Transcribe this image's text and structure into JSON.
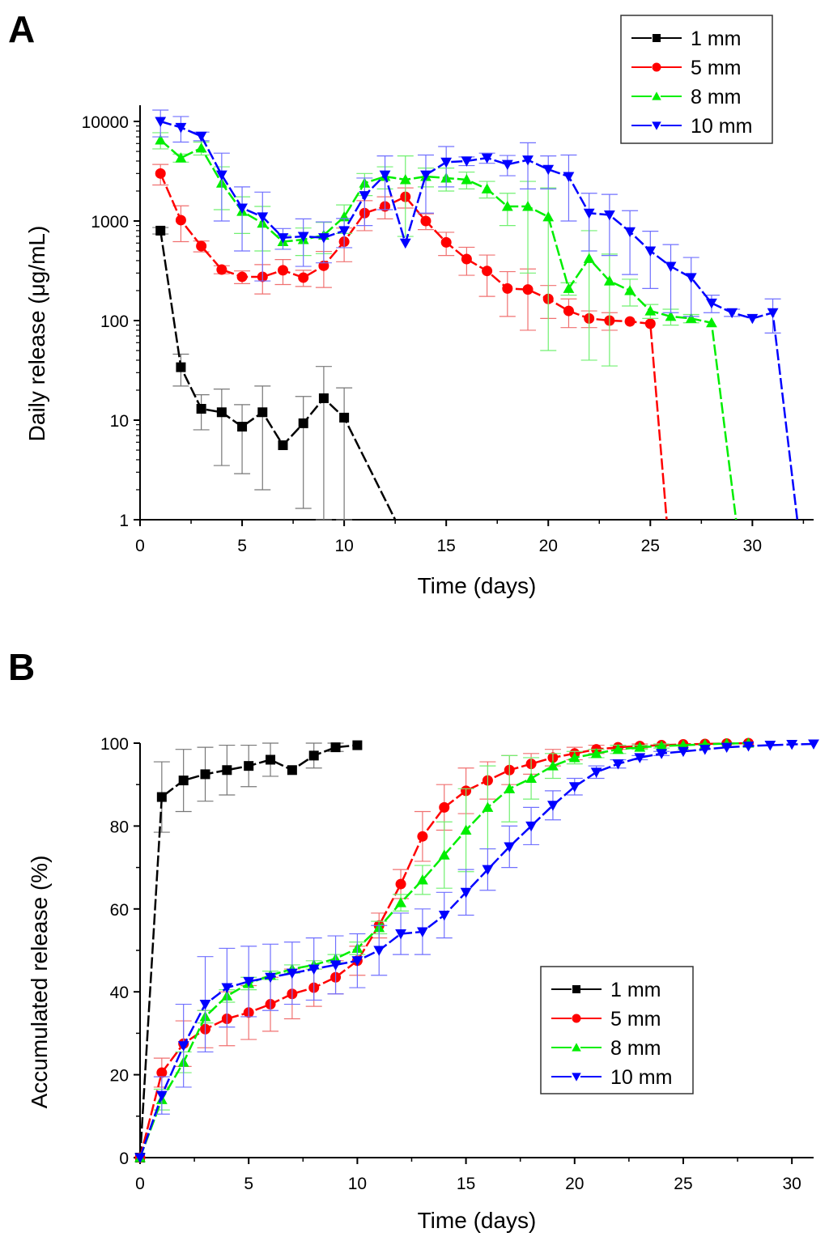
{
  "chart_data": [
    {
      "panel": "A",
      "type": "line",
      "title": "",
      "xlabel": "Time (days)",
      "ylabel": "Daily release (μg/mL)",
      "yscale": "log",
      "xlim": [
        0,
        33
      ],
      "ylim": [
        1,
        13000
      ],
      "xticks": [
        0,
        5,
        10,
        15,
        20,
        25,
        30
      ],
      "xtick_labels": [
        "0",
        "5",
        "10",
        "15",
        "20",
        "25",
        "30"
      ],
      "yticks": [
        1,
        10,
        100,
        1000,
        10000
      ],
      "ytick_labels": [
        "1",
        "10",
        "100",
        "1000",
        "10000"
      ],
      "grid": false,
      "legend_position": "top-right",
      "series": [
        {
          "name": "1 mm",
          "color": "#000000",
          "marker": "square",
          "x": [
            1,
            2,
            3,
            4,
            5,
            6,
            7,
            8,
            9,
            10,
            12.5
          ],
          "y": [
            800,
            34,
            13,
            12,
            8.6,
            12,
            5.6,
            9.3,
            16.6,
            10.6,
            1
          ],
          "err": [
            60,
            12,
            5,
            8.5,
            5.7,
            10,
            0,
            8,
            18,
            10.5,
            0
          ]
        },
        {
          "name": "5 mm",
          "color": "#ff0000",
          "marker": "circle",
          "x": [
            1,
            2,
            3,
            4,
            5,
            6,
            7,
            8,
            9,
            10,
            11,
            12,
            13,
            14,
            15,
            16,
            17,
            18,
            19,
            20,
            21,
            22,
            23,
            24,
            25,
            25.8
          ],
          "y": [
            3000,
            1020,
            560,
            325,
            275,
            275,
            320,
            270,
            355,
            620,
            1200,
            1400,
            1750,
            1000,
            610,
            415,
            315,
            210,
            205,
            165,
            125,
            105,
            100,
            98,
            93,
            1
          ],
          "err": [
            700,
            400,
            70,
            30,
            40,
            90,
            90,
            50,
            140,
            230,
            400,
            350,
            400,
            180,
            160,
            130,
            140,
            100,
            125,
            60,
            40,
            20,
            20,
            0,
            0,
            0
          ]
        },
        {
          "name": "8 mm",
          "color": "#00ee00",
          "marker": "triangle-up",
          "x": [
            1,
            2,
            3,
            4,
            5,
            6,
            7,
            8,
            9,
            10,
            11,
            12,
            13,
            14,
            15,
            16,
            17,
            18,
            19,
            20,
            21,
            22,
            23,
            24,
            25,
            26,
            27,
            28,
            29.2
          ],
          "y": [
            6500,
            4300,
            5400,
            2400,
            1250,
            950,
            620,
            650,
            720,
            1100,
            2400,
            2800,
            2600,
            2800,
            2700,
            2600,
            2100,
            1400,
            1400,
            1100,
            210,
            420,
            250,
            200,
            125,
            110,
            105,
            95,
            1
          ],
          "err": [
            1200,
            400,
            800,
            1100,
            500,
            450,
            100,
            200,
            250,
            350,
            600,
            700,
            1900,
            600,
            700,
            500,
            400,
            500,
            1100,
            1050,
            30,
            380,
            215,
            60,
            20,
            20,
            10,
            0,
            0
          ]
        },
        {
          "name": "10 mm",
          "color": "#0000ff",
          "marker": "triangle-down",
          "x": [
            1,
            2,
            3,
            4,
            5,
            6,
            7,
            8,
            9,
            10,
            11,
            12,
            13,
            14,
            15,
            16,
            17,
            18,
            19,
            20,
            21,
            22,
            23,
            24,
            25,
            26,
            27,
            28,
            29,
            30,
            31,
            32.2
          ],
          "y": [
            10000,
            8700,
            7100,
            2900,
            1350,
            1100,
            680,
            700,
            680,
            800,
            1800,
            2900,
            600,
            2900,
            3900,
            4000,
            4300,
            3700,
            4100,
            3300,
            2800,
            1200,
            1150,
            780,
            500,
            350,
            270,
            150,
            120,
            105,
            120,
            1
          ],
          "err": [
            3000,
            2500,
            700,
            1900,
            850,
            850,
            160,
            350,
            300,
            260,
            900,
            1600,
            0,
            1700,
            1700,
            400,
            500,
            850,
            2000,
            1200,
            1800,
            700,
            700,
            490,
            290,
            230,
            160,
            30,
            10,
            0,
            45,
            0
          ]
        }
      ]
    },
    {
      "panel": "B",
      "type": "line",
      "title": "",
      "xlabel": "Time (days)",
      "ylabel": "Accumulated release (%)",
      "yscale": "linear",
      "xlim": [
        0,
        31
      ],
      "ylim": [
        0,
        100
      ],
      "xticks": [
        0,
        5,
        10,
        15,
        20,
        25,
        30
      ],
      "xtick_labels": [
        "0",
        "5",
        "10",
        "15",
        "20",
        "25",
        "30"
      ],
      "yticks": [
        0,
        20,
        40,
        60,
        80,
        100
      ],
      "ytick_labels": [
        "0",
        "20",
        "40",
        "60",
        "80",
        "100"
      ],
      "grid": false,
      "legend_position": "center-right",
      "series": [
        {
          "name": "1 mm",
          "color": "#000000",
          "marker": "square",
          "x": [
            0,
            1,
            2,
            3,
            4,
            5,
            6,
            7,
            8,
            9,
            10
          ],
          "y": [
            0,
            87,
            91,
            92.5,
            93.5,
            94.5,
            96,
            93.5,
            97,
            99,
            99.5
          ],
          "err": [
            0,
            8.5,
            7.5,
            6.5,
            6,
            5,
            4,
            0,
            3,
            1,
            0
          ]
        },
        {
          "name": "5 mm",
          "color": "#ff0000",
          "marker": "circle",
          "x": [
            0,
            1,
            2,
            3,
            4,
            5,
            6,
            7,
            8,
            9,
            10,
            11,
            12,
            13,
            14,
            15,
            16,
            17,
            18,
            19,
            20,
            21,
            22,
            23,
            24,
            25,
            26,
            27,
            28
          ],
          "y": [
            0,
            20.5,
            27.5,
            31,
            33.5,
            35,
            37,
            39.5,
            41,
            43.5,
            47.5,
            56,
            66,
            77.5,
            84.5,
            88.5,
            91,
            93.5,
            95,
            96.5,
            97.5,
            98.5,
            99,
            99.3,
            99.5,
            99.7,
            99.8,
            99.9,
            100
          ],
          "err": [
            0,
            3.5,
            5.5,
            4.5,
            6.5,
            6.5,
            6.5,
            6,
            4.5,
            4,
            3.5,
            3,
            3.5,
            6,
            5.5,
            5.5,
            4.5,
            3.5,
            2.5,
            2,
            1.5,
            1,
            0.5,
            0.5,
            0,
            0,
            0,
            0,
            0
          ]
        },
        {
          "name": "8 mm",
          "color": "#00ee00",
          "marker": "triangle-up",
          "x": [
            0,
            1,
            2,
            3,
            4,
            5,
            6,
            7,
            8,
            9,
            10,
            11,
            12,
            13,
            14,
            15,
            16,
            17,
            18,
            19,
            20,
            21,
            22,
            23,
            24,
            25,
            26,
            27,
            28
          ],
          "y": [
            0,
            14,
            23,
            34,
            39,
            42,
            44,
            45.5,
            46.5,
            48,
            50.5,
            55.5,
            61.5,
            67,
            73,
            79,
            84.5,
            89,
            91.5,
            94.5,
            96.5,
            97.5,
            98.5,
            99,
            99.3,
            99.5,
            99.7,
            99.9,
            100
          ],
          "err": [
            0,
            2.5,
            2.5,
            1.5,
            1.5,
            1.5,
            1,
            1,
            1,
            1,
            1.5,
            1.5,
            2,
            3.5,
            8,
            10,
            10,
            8,
            5,
            3,
            1.5,
            1,
            1,
            0.5,
            0.5,
            0,
            0,
            0,
            0
          ]
        },
        {
          "name": "10 mm",
          "color": "#0000ff",
          "marker": "triangle-down",
          "x": [
            0,
            1,
            2,
            3,
            4,
            5,
            6,
            7,
            8,
            9,
            10,
            11,
            12,
            13,
            14,
            15,
            16,
            17,
            18,
            19,
            20,
            21,
            22,
            23,
            24,
            25,
            26,
            27,
            28,
            29,
            30,
            31
          ],
          "y": [
            0,
            15,
            27,
            37,
            41,
            42.5,
            43.5,
            44.5,
            45.5,
            46.5,
            47.5,
            50,
            54,
            54.5,
            58.5,
            64,
            69.5,
            75,
            80,
            85,
            89.5,
            93,
            95,
            96.5,
            97.5,
            98,
            98.5,
            99,
            99.3,
            99.5,
            99.7,
            99.8
          ],
          "err": [
            0,
            4.5,
            10,
            11.5,
            9.5,
            8.5,
            8,
            7.5,
            7.5,
            7,
            6.5,
            6,
            5,
            5.5,
            5.5,
            5.5,
            5,
            5,
            4.5,
            3.5,
            2,
            1.5,
            1,
            0.5,
            0.5,
            0,
            0,
            0,
            0,
            0,
            0,
            0
          ]
        }
      ]
    }
  ],
  "labels": {
    "panel_a": "A",
    "panel_b": "B",
    "legend": [
      "1 mm",
      "5 mm",
      "8 mm",
      "10 mm"
    ]
  }
}
